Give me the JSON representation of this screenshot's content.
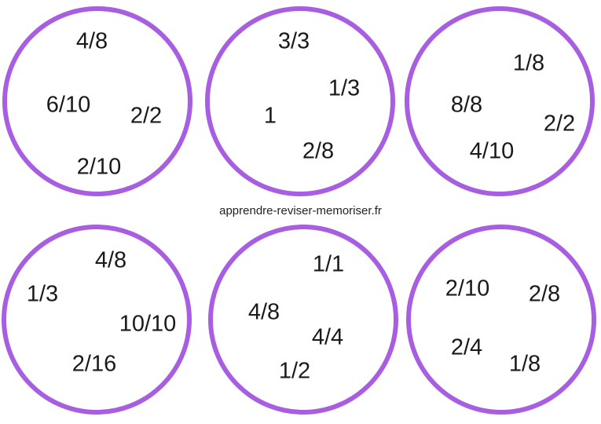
{
  "colors": {
    "circle_border": "#a85ee0",
    "text": "#1a1a1a"
  },
  "watermark": "apprendre-reviser-memoriser.fr",
  "circles": [
    {
      "fractions": [
        "4/8",
        "6/10",
        "2/2",
        "2/10"
      ]
    },
    {
      "fractions": [
        "3/3",
        "1/3",
        "1",
        "2/8"
      ]
    },
    {
      "fractions": [
        "1/8",
        "8/8",
        "2/2",
        "4/10"
      ]
    },
    {
      "fractions": [
        "4/8",
        "1/3",
        "10/10",
        "2/16"
      ]
    },
    {
      "fractions": [
        "1/1",
        "4/8",
        "4/4",
        "1/2"
      ]
    },
    {
      "fractions": [
        "2/10",
        "2/8",
        "2/4",
        "1/8"
      ]
    }
  ]
}
